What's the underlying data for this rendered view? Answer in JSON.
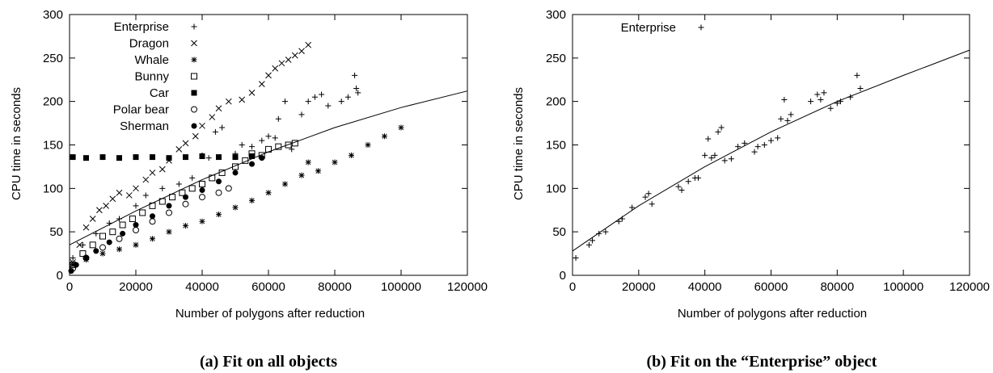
{
  "chart_data": [
    {
      "type": "scatter",
      "caption": "(a) Fit on all objects",
      "xlabel": "Number of polygons after reduction",
      "ylabel": "CPU time in seconds",
      "xlim": [
        0,
        120000
      ],
      "ylim": [
        0,
        300
      ],
      "xticks": [
        0,
        20000,
        40000,
        60000,
        80000,
        100000,
        120000
      ],
      "yticks": [
        0,
        50,
        100,
        150,
        200,
        250,
        300
      ],
      "grid": false,
      "legend_position": "top-left",
      "series": [
        {
          "name": "Enterprise",
          "marker": "plus",
          "points": [
            [
              1000,
              20
            ],
            [
              4000,
              35
            ],
            [
              8000,
              48
            ],
            [
              12000,
              60
            ],
            [
              15000,
              65
            ],
            [
              20000,
              80
            ],
            [
              23000,
              92
            ],
            [
              28000,
              100
            ],
            [
              33000,
              105
            ],
            [
              37000,
              112
            ],
            [
              40000,
              138
            ],
            [
              42000,
              135
            ],
            [
              44000,
              165
            ],
            [
              46000,
              170
            ],
            [
              50000,
              140
            ],
            [
              52000,
              150
            ],
            [
              55000,
              148
            ],
            [
              58000,
              155
            ],
            [
              60000,
              160
            ],
            [
              62000,
              158
            ],
            [
              63000,
              180
            ],
            [
              65000,
              200
            ],
            [
              67000,
              145
            ],
            [
              70000,
              185
            ],
            [
              72000,
              200
            ],
            [
              74000,
              205
            ],
            [
              76000,
              208
            ],
            [
              78000,
              195
            ],
            [
              82000,
              200
            ],
            [
              84000,
              205
            ],
            [
              86000,
              230
            ],
            [
              86500,
              215
            ],
            [
              87000,
              210
            ]
          ]
        },
        {
          "name": "Dragon",
          "marker": "cross",
          "points": [
            [
              1000,
              15
            ],
            [
              3000,
              35
            ],
            [
              5000,
              55
            ],
            [
              7000,
              65
            ],
            [
              9000,
              75
            ],
            [
              11000,
              80
            ],
            [
              13000,
              88
            ],
            [
              15000,
              95
            ],
            [
              18000,
              92
            ],
            [
              20000,
              100
            ],
            [
              23000,
              110
            ],
            [
              25000,
              118
            ],
            [
              28000,
              122
            ],
            [
              30000,
              132
            ],
            [
              33000,
              145
            ],
            [
              35000,
              152
            ],
            [
              38000,
              160
            ],
            [
              40000,
              172
            ],
            [
              43000,
              182
            ],
            [
              45000,
              192
            ],
            [
              48000,
              200
            ],
            [
              52000,
              202
            ],
            [
              55000,
              210
            ],
            [
              58000,
              220
            ],
            [
              60000,
              230
            ],
            [
              62000,
              238
            ],
            [
              64000,
              244
            ],
            [
              66000,
              248
            ],
            [
              68000,
              253
            ],
            [
              70000,
              258
            ],
            [
              72000,
              265
            ]
          ]
        },
        {
          "name": "Whale",
          "marker": "star",
          "points": [
            [
              1000,
              12
            ],
            [
              5000,
              18
            ],
            [
              10000,
              25
            ],
            [
              15000,
              30
            ],
            [
              20000,
              35
            ],
            [
              25000,
              42
            ],
            [
              30000,
              50
            ],
            [
              35000,
              57
            ],
            [
              40000,
              62
            ],
            [
              45000,
              70
            ],
            [
              50000,
              78
            ],
            [
              55000,
              86
            ],
            [
              60000,
              95
            ],
            [
              65000,
              105
            ],
            [
              70000,
              115
            ],
            [
              72000,
              130
            ],
            [
              75000,
              120
            ],
            [
              80000,
              130
            ],
            [
              85000,
              138
            ],
            [
              90000,
              150
            ],
            [
              95000,
              160
            ],
            [
              100000,
              170
            ]
          ]
        },
        {
          "name": "Bunny",
          "marker": "square",
          "points": [
            [
              1000,
              12
            ],
            [
              4000,
              25
            ],
            [
              7000,
              35
            ],
            [
              10000,
              45
            ],
            [
              13000,
              50
            ],
            [
              16000,
              58
            ],
            [
              19000,
              65
            ],
            [
              22000,
              72
            ],
            [
              25000,
              80
            ],
            [
              28000,
              85
            ],
            [
              31000,
              90
            ],
            [
              34000,
              95
            ],
            [
              37000,
              100
            ],
            [
              40000,
              105
            ],
            [
              43000,
              112
            ],
            [
              46000,
              118
            ],
            [
              50000,
              125
            ],
            [
              53000,
              132
            ],
            [
              55000,
              140
            ],
            [
              58000,
              138
            ],
            [
              60000,
              145
            ],
            [
              63000,
              148
            ],
            [
              66000,
              150
            ],
            [
              68000,
              152
            ]
          ]
        },
        {
          "name": "Car",
          "marker": "filled-square",
          "points": [
            [
              1000,
              136
            ],
            [
              5000,
              135
            ],
            [
              10000,
              136
            ],
            [
              15000,
              135
            ],
            [
              20000,
              136
            ],
            [
              25000,
              136
            ],
            [
              30000,
              135
            ],
            [
              35000,
              136
            ],
            [
              40000,
              137
            ],
            [
              45000,
              136
            ],
            [
              50000,
              136
            ],
            [
              55000,
              137
            ]
          ]
        },
        {
          "name": "Polar bear",
          "marker": "circle",
          "points": [
            [
              1000,
              8
            ],
            [
              5000,
              20
            ],
            [
              10000,
              32
            ],
            [
              15000,
              42
            ],
            [
              20000,
              52
            ],
            [
              25000,
              62
            ],
            [
              30000,
              72
            ],
            [
              35000,
              82
            ],
            [
              40000,
              90
            ],
            [
              45000,
              95
            ],
            [
              48000,
              100
            ]
          ]
        },
        {
          "name": "Sherman",
          "marker": "filled-circle",
          "points": [
            [
              500,
              5
            ],
            [
              2000,
              12
            ],
            [
              5000,
              20
            ],
            [
              8000,
              28
            ],
            [
              12000,
              38
            ],
            [
              16000,
              48
            ],
            [
              20000,
              58
            ],
            [
              25000,
              68
            ],
            [
              30000,
              80
            ],
            [
              35000,
              90
            ],
            [
              40000,
              98
            ],
            [
              45000,
              108
            ],
            [
              50000,
              118
            ],
            [
              55000,
              128
            ],
            [
              58000,
              135
            ]
          ]
        }
      ],
      "fit_curve": [
        [
          0,
          35
        ],
        [
          20000,
          74
        ],
        [
          40000,
          110
        ],
        [
          60000,
          142
        ],
        [
          80000,
          170
        ],
        [
          100000,
          193
        ],
        [
          120000,
          212
        ]
      ]
    },
    {
      "type": "scatter",
      "caption": "(b) Fit on the “Enterprise” object",
      "xlabel": "Number of polygons after reduction",
      "ylabel": "CPU time in seconds",
      "xlim": [
        0,
        120000
      ],
      "ylim": [
        0,
        300
      ],
      "xticks": [
        0,
        20000,
        40000,
        60000,
        80000,
        100000,
        120000
      ],
      "yticks": [
        0,
        50,
        100,
        150,
        200,
        250,
        300
      ],
      "grid": false,
      "legend_position": "top-left",
      "series": [
        {
          "name": "Enterprise",
          "marker": "plus",
          "points": [
            [
              1000,
              20
            ],
            [
              5000,
              35
            ],
            [
              6000,
              40
            ],
            [
              8000,
              48
            ],
            [
              10000,
              50
            ],
            [
              14000,
              62
            ],
            [
              15000,
              65
            ],
            [
              18000,
              78
            ],
            [
              22000,
              90
            ],
            [
              23000,
              94
            ],
            [
              24000,
              82
            ],
            [
              32000,
              102
            ],
            [
              33000,
              98
            ],
            [
              35000,
              108
            ],
            [
              37000,
              112
            ],
            [
              38000,
              112
            ],
            [
              40000,
              138
            ],
            [
              41000,
              157
            ],
            [
              42000,
              135
            ],
            [
              43000,
              138
            ],
            [
              44000,
              165
            ],
            [
              45000,
              170
            ],
            [
              46000,
              132
            ],
            [
              48000,
              134
            ],
            [
              50000,
              148
            ],
            [
              52000,
              152
            ],
            [
              55000,
              142
            ],
            [
              56000,
              148
            ],
            [
              58000,
              150
            ],
            [
              60000,
              155
            ],
            [
              62000,
              158
            ],
            [
              63000,
              180
            ],
            [
              64000,
              202
            ],
            [
              65000,
              178
            ],
            [
              66000,
              185
            ],
            [
              72000,
              200
            ],
            [
              74000,
              208
            ],
            [
              75000,
              202
            ],
            [
              76000,
              210
            ],
            [
              78000,
              192
            ],
            [
              80000,
              198
            ],
            [
              81000,
              200
            ],
            [
              84000,
              205
            ],
            [
              86000,
              230
            ],
            [
              87000,
              215
            ]
          ]
        }
      ],
      "fit_curve": [
        [
          0,
          28
        ],
        [
          20000,
          80
        ],
        [
          40000,
          125
        ],
        [
          60000,
          165
        ],
        [
          80000,
          200
        ],
        [
          100000,
          230
        ],
        [
          120000,
          259
        ]
      ]
    }
  ]
}
